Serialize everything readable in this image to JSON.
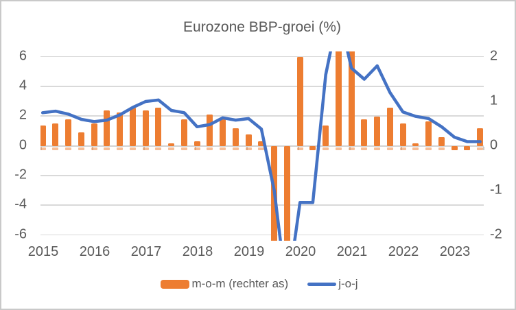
{
  "title": "Eurozone BBP-groei (%)",
  "legend": {
    "bar_label": "m-o-m (rechter as)",
    "line_label": "j-o-j"
  },
  "colors": {
    "bar": "#ed7d31",
    "bar_stub": "rgba(237,125,49,0.5)",
    "line": "#4472c4",
    "grid": "#d9d9d9",
    "text": "#595959",
    "background": "#ffffff",
    "frame_border": "#c9c9c9"
  },
  "left_axis": {
    "tick_labels": [
      "6",
      "4",
      "2",
      "0",
      "-2",
      "-4",
      "-6"
    ],
    "tick_values": [
      6,
      4,
      2,
      0,
      -2,
      -4,
      -6
    ],
    "range_shown": [
      -6.4,
      6.4
    ]
  },
  "right_axis": {
    "tick_labels": [
      "2",
      "1",
      "0",
      "-1",
      "-2"
    ],
    "tick_values": [
      2,
      1,
      0,
      -1,
      -2
    ],
    "range_shown": [
      -2.12,
      2.12
    ]
  },
  "x_axis": {
    "year_labels": [
      "2015",
      "2016",
      "2017",
      "2018",
      "2019",
      "2020",
      "2021",
      "2022",
      "2023"
    ],
    "quarters_per_year": 4,
    "gridlines": "horizontal only"
  },
  "chart_data": {
    "type": "bar+line combo",
    "title": "Eurozone BBP-groei (%)",
    "categories": [
      "2015 Q1",
      "2015 Q2",
      "2015 Q3",
      "2015 Q4",
      "2016 Q1",
      "2016 Q2",
      "2016 Q3",
      "2016 Q4",
      "2017 Q1",
      "2017 Q2",
      "2017 Q3",
      "2017 Q4",
      "2018 Q1",
      "2018 Q2",
      "2018 Q3",
      "2018 Q4",
      "2019 Q1",
      "2019 Q2",
      "2019 Q3",
      "2019 Q4",
      "2020 Q1",
      "2020 Q2",
      "2020 Q3",
      "2020 Q4",
      "2021 Q1",
      "2021 Q2",
      "2021 Q3",
      "2021 Q4",
      "2022 Q1",
      "2022 Q2",
      "2022 Q3",
      "2022 Q4",
      "2023 Q1",
      "2023 Q2",
      "2023 Q3"
    ],
    "series": [
      {
        "name": "m-o-m (rechter as)",
        "type": "bar",
        "axis": "right",
        "values": [
          0.45,
          0.5,
          0.6,
          0.3,
          0.5,
          0.8,
          0.75,
          0.85,
          0.8,
          0.85,
          0.05,
          0.6,
          0.1,
          0.7,
          0.6,
          0.4,
          0.25,
          0.1,
          -2.3,
          -2.3,
          2.0,
          -0.1,
          0.45,
          2.3,
          2.3,
          0.6,
          0.65,
          0.85,
          0.5,
          0.05,
          0.55,
          0.2,
          -0.1,
          -0.1,
          0.4
        ],
        "note": "values beyond +/-2.12 are clipped at plot edge in the image (indices 19,20 bottom; 24,25 top; 1-based)"
      },
      {
        "name": "j-o-j",
        "type": "line",
        "axis": "left",
        "values": [
          2.25,
          2.35,
          2.15,
          1.8,
          1.65,
          1.75,
          2.1,
          2.6,
          3.0,
          3.1,
          2.4,
          2.25,
          1.3,
          1.45,
          1.9,
          1.75,
          1.85,
          1.15,
          -3.0,
          -10.0,
          -3.8,
          -3.8,
          4.8,
          9.0,
          5.25,
          4.5,
          5.4,
          3.6,
          2.3,
          2.0,
          1.85,
          1.3,
          0.6,
          0.3,
          0.3
        ],
        "note": "line clipped at plot top between points 23-25 and at plot bottom between points 19-21 (1-based)"
      }
    ],
    "ylim_left": [
      -6.4,
      6.4
    ],
    "ylim_right": [
      -2.12,
      2.12
    ],
    "legend_position": "bottom"
  }
}
